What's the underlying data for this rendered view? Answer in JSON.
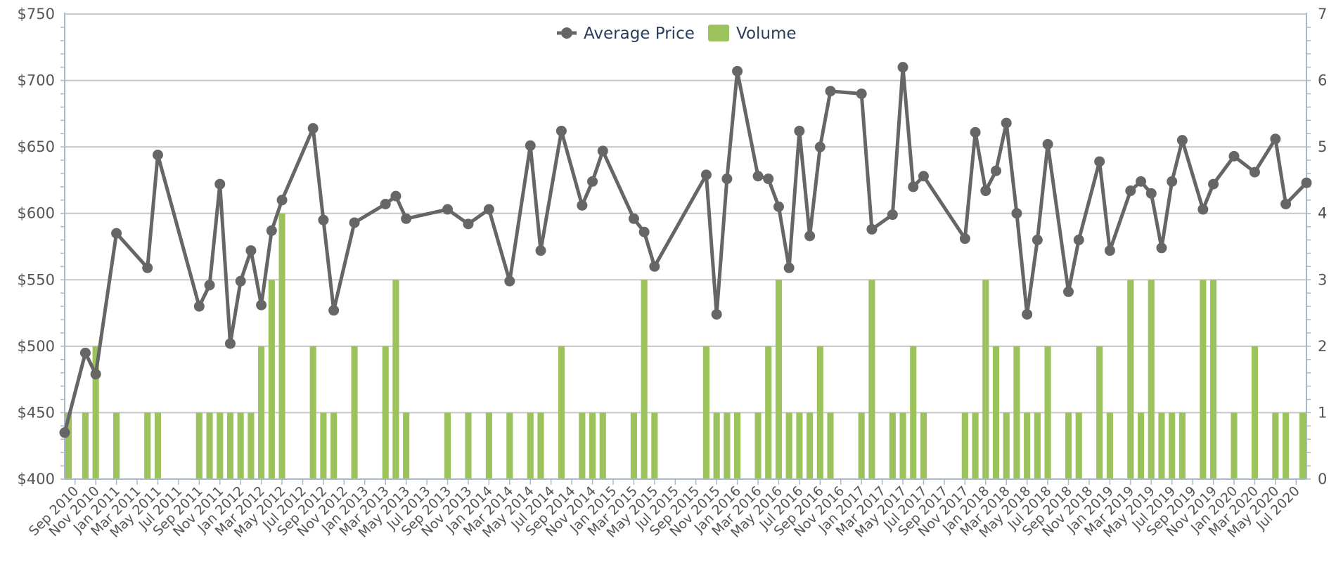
{
  "chart_data": {
    "type": "bar",
    "legend": {
      "placement": "top-center",
      "items": [
        {
          "label": "Average Price",
          "kind": "line",
          "color": "#666666"
        },
        {
          "label": "Volume",
          "kind": "bar",
          "color": "#9bc25d"
        }
      ]
    },
    "y_left": {
      "ticks": [
        "$400",
        "$450",
        "$500",
        "$550",
        "$600",
        "$650",
        "$700",
        "$750"
      ],
      "range": [
        400,
        750
      ],
      "grid": true
    },
    "y_right": {
      "ticks": [
        "0",
        "1",
        "2",
        "3",
        "4",
        "5",
        "6",
        "7"
      ],
      "range": [
        0,
        7
      ]
    },
    "x_axis": {
      "range": [
        "2010-08",
        "2020-08"
      ],
      "tick_labels": [
        "Sep 2010",
        "Nov 2010",
        "Jan 2011",
        "Mar 2011",
        "May 2011",
        "Jul 2011",
        "Sep 2011",
        "Nov 2011",
        "Jan 2012",
        "Mar 2012",
        "May 2012",
        "Jul 2012",
        "Sep 2012",
        "Nov 2012",
        "Jan 2013",
        "Mar 2013",
        "May 2013",
        "Jul 2013",
        "Sep 2013",
        "Nov 2013",
        "Jan 2014",
        "Mar 2014",
        "May 2014",
        "Jul 2014",
        "Sep 2014",
        "Nov 2014",
        "Jan 2015",
        "Mar 2015",
        "May 2015",
        "Jul 2015",
        "Sep 2015",
        "Nov 2015",
        "Jan 2016",
        "Mar 2016",
        "May 2016",
        "Jul 2016",
        "Sep 2016",
        "Nov 2016",
        "Jan 2017",
        "Mar 2017",
        "May 2017",
        "Jul 2017",
        "Sep 2017",
        "Nov 2017",
        "Jan 2018",
        "Mar 2018",
        "May 2018",
        "Jul 2018",
        "Sep 2018",
        "Nov 2018",
        "Jan 2019",
        "Mar 2019",
        "May 2019",
        "Jul 2019",
        "Sep 2019",
        "Nov 2019",
        "Jan 2020",
        "Mar 2020",
        "May 2020",
        "Jul 2020"
      ]
    },
    "series": [
      {
        "name": "Volume",
        "type": "bar",
        "color": "#9bc25d",
        "axis": "right",
        "points": [
          {
            "x": "2010-08",
            "y": 1
          },
          {
            "x": "2010-10",
            "y": 1
          },
          {
            "x": "2010-11",
            "y": 2
          },
          {
            "x": "2011-01",
            "y": 1
          },
          {
            "x": "2011-04",
            "y": 1
          },
          {
            "x": "2011-05",
            "y": 1
          },
          {
            "x": "2011-09",
            "y": 1
          },
          {
            "x": "2011-10",
            "y": 1
          },
          {
            "x": "2011-11",
            "y": 1
          },
          {
            "x": "2011-12",
            "y": 1
          },
          {
            "x": "2012-01",
            "y": 1
          },
          {
            "x": "2012-02",
            "y": 1
          },
          {
            "x": "2012-03",
            "y": 2
          },
          {
            "x": "2012-04",
            "y": 3
          },
          {
            "x": "2012-05",
            "y": 4
          },
          {
            "x": "2012-08",
            "y": 2
          },
          {
            "x": "2012-09",
            "y": 1
          },
          {
            "x": "2012-10",
            "y": 1
          },
          {
            "x": "2012-12",
            "y": 2
          },
          {
            "x": "2013-03",
            "y": 2
          },
          {
            "x": "2013-04",
            "y": 3
          },
          {
            "x": "2013-05",
            "y": 1
          },
          {
            "x": "2013-09",
            "y": 1
          },
          {
            "x": "2013-11",
            "y": 1
          },
          {
            "x": "2014-01",
            "y": 1
          },
          {
            "x": "2014-03",
            "y": 1
          },
          {
            "x": "2014-05",
            "y": 1
          },
          {
            "x": "2014-06",
            "y": 1
          },
          {
            "x": "2014-08",
            "y": 2
          },
          {
            "x": "2014-10",
            "y": 1
          },
          {
            "x": "2014-11",
            "y": 1
          },
          {
            "x": "2014-12",
            "y": 1
          },
          {
            "x": "2015-03",
            "y": 1
          },
          {
            "x": "2015-04",
            "y": 3
          },
          {
            "x": "2015-05",
            "y": 1
          },
          {
            "x": "2015-10",
            "y": 2
          },
          {
            "x": "2015-11",
            "y": 1
          },
          {
            "x": "2015-12",
            "y": 1
          },
          {
            "x": "2016-01",
            "y": 1
          },
          {
            "x": "2016-03",
            "y": 1
          },
          {
            "x": "2016-04",
            "y": 2
          },
          {
            "x": "2016-05",
            "y": 3
          },
          {
            "x": "2016-06",
            "y": 1
          },
          {
            "x": "2016-07",
            "y": 1
          },
          {
            "x": "2016-08",
            "y": 1
          },
          {
            "x": "2016-09",
            "y": 2
          },
          {
            "x": "2016-10",
            "y": 1
          },
          {
            "x": "2017-01",
            "y": 1
          },
          {
            "x": "2017-02",
            "y": 3
          },
          {
            "x": "2017-04",
            "y": 1
          },
          {
            "x": "2017-05",
            "y": 1
          },
          {
            "x": "2017-06",
            "y": 2
          },
          {
            "x": "2017-07",
            "y": 1
          },
          {
            "x": "2017-11",
            "y": 1
          },
          {
            "x": "2017-12",
            "y": 1
          },
          {
            "x": "2018-01",
            "y": 3
          },
          {
            "x": "2018-02",
            "y": 2
          },
          {
            "x": "2018-03",
            "y": 1
          },
          {
            "x": "2018-04",
            "y": 2
          },
          {
            "x": "2018-05",
            "y": 1
          },
          {
            "x": "2018-06",
            "y": 1
          },
          {
            "x": "2018-07",
            "y": 2
          },
          {
            "x": "2018-09",
            "y": 1
          },
          {
            "x": "2018-10",
            "y": 1
          },
          {
            "x": "2018-12",
            "y": 2
          },
          {
            "x": "2019-01",
            "y": 1
          },
          {
            "x": "2019-03",
            "y": 3
          },
          {
            "x": "2019-04",
            "y": 1
          },
          {
            "x": "2019-05",
            "y": 3
          },
          {
            "x": "2019-06",
            "y": 1
          },
          {
            "x": "2019-07",
            "y": 1
          },
          {
            "x": "2019-08",
            "y": 1
          },
          {
            "x": "2019-10",
            "y": 3
          },
          {
            "x": "2019-11",
            "y": 3
          },
          {
            "x": "2020-01",
            "y": 1
          },
          {
            "x": "2020-03",
            "y": 2
          },
          {
            "x": "2020-05",
            "y": 1
          },
          {
            "x": "2020-06",
            "y": 1
          },
          {
            "x": "2020-08",
            "y": 1
          }
        ]
      },
      {
        "name": "Average Price",
        "type": "line",
        "color": "#666666",
        "axis": "left",
        "points": [
          {
            "x": "2010-08",
            "y": 435
          },
          {
            "x": "2010-10",
            "y": 495
          },
          {
            "x": "2010-11",
            "y": 479
          },
          {
            "x": "2011-01",
            "y": 585
          },
          {
            "x": "2011-04",
            "y": 559
          },
          {
            "x": "2011-05",
            "y": 644
          },
          {
            "x": "2011-09",
            "y": 530
          },
          {
            "x": "2011-10",
            "y": 546
          },
          {
            "x": "2011-11",
            "y": 622
          },
          {
            "x": "2011-12",
            "y": 502
          },
          {
            "x": "2012-01",
            "y": 549
          },
          {
            "x": "2012-02",
            "y": 572
          },
          {
            "x": "2012-03",
            "y": 531
          },
          {
            "x": "2012-04",
            "y": 587
          },
          {
            "x": "2012-05",
            "y": 610
          },
          {
            "x": "2012-08",
            "y": 664
          },
          {
            "x": "2012-09",
            "y": 595
          },
          {
            "x": "2012-10",
            "y": 527
          },
          {
            "x": "2012-12",
            "y": 593
          },
          {
            "x": "2013-03",
            "y": 607
          },
          {
            "x": "2013-04",
            "y": 613
          },
          {
            "x": "2013-05",
            "y": 596
          },
          {
            "x": "2013-09",
            "y": 603
          },
          {
            "x": "2013-11",
            "y": 592
          },
          {
            "x": "2014-01",
            "y": 603
          },
          {
            "x": "2014-03",
            "y": 549
          },
          {
            "x": "2014-05",
            "y": 651
          },
          {
            "x": "2014-06",
            "y": 572
          },
          {
            "x": "2014-08",
            "y": 662
          },
          {
            "x": "2014-10",
            "y": 606
          },
          {
            "x": "2014-11",
            "y": 624
          },
          {
            "x": "2014-12",
            "y": 647
          },
          {
            "x": "2015-03",
            "y": 596
          },
          {
            "x": "2015-04",
            "y": 586
          },
          {
            "x": "2015-05",
            "y": 560
          },
          {
            "x": "2015-10",
            "y": 629
          },
          {
            "x": "2015-11",
            "y": 524
          },
          {
            "x": "2015-12",
            "y": 626
          },
          {
            "x": "2016-01",
            "y": 707
          },
          {
            "x": "2016-03",
            "y": 628
          },
          {
            "x": "2016-04",
            "y": 626
          },
          {
            "x": "2016-05",
            "y": 605
          },
          {
            "x": "2016-06",
            "y": 559
          },
          {
            "x": "2016-07",
            "y": 662
          },
          {
            "x": "2016-08",
            "y": 583
          },
          {
            "x": "2016-09",
            "y": 650
          },
          {
            "x": "2016-10",
            "y": 692
          },
          {
            "x": "2017-01",
            "y": 690
          },
          {
            "x": "2017-02",
            "y": 588
          },
          {
            "x": "2017-04",
            "y": 599
          },
          {
            "x": "2017-05",
            "y": 710
          },
          {
            "x": "2017-06",
            "y": 620
          },
          {
            "x": "2017-07",
            "y": 628
          },
          {
            "x": "2017-11",
            "y": 581
          },
          {
            "x": "2017-12",
            "y": 661
          },
          {
            "x": "2018-01",
            "y": 617
          },
          {
            "x": "2018-02",
            "y": 632
          },
          {
            "x": "2018-03",
            "y": 668
          },
          {
            "x": "2018-04",
            "y": 600
          },
          {
            "x": "2018-05",
            "y": 524
          },
          {
            "x": "2018-06",
            "y": 580
          },
          {
            "x": "2018-07",
            "y": 652
          },
          {
            "x": "2018-09",
            "y": 541
          },
          {
            "x": "2018-10",
            "y": 580
          },
          {
            "x": "2018-12",
            "y": 639
          },
          {
            "x": "2019-01",
            "y": 572
          },
          {
            "x": "2019-03",
            "y": 617
          },
          {
            "x": "2019-04",
            "y": 624
          },
          {
            "x": "2019-05",
            "y": 615
          },
          {
            "x": "2019-06",
            "y": 574
          },
          {
            "x": "2019-07",
            "y": 624
          },
          {
            "x": "2019-08",
            "y": 655
          },
          {
            "x": "2019-10",
            "y": 603
          },
          {
            "x": "2019-11",
            "y": 622
          },
          {
            "x": "2020-01",
            "y": 643
          },
          {
            "x": "2020-03",
            "y": 631
          },
          {
            "x": "2020-05",
            "y": 656
          },
          {
            "x": "2020-06",
            "y": 607
          },
          {
            "x": "2020-08",
            "y": 623
          }
        ]
      }
    ]
  }
}
